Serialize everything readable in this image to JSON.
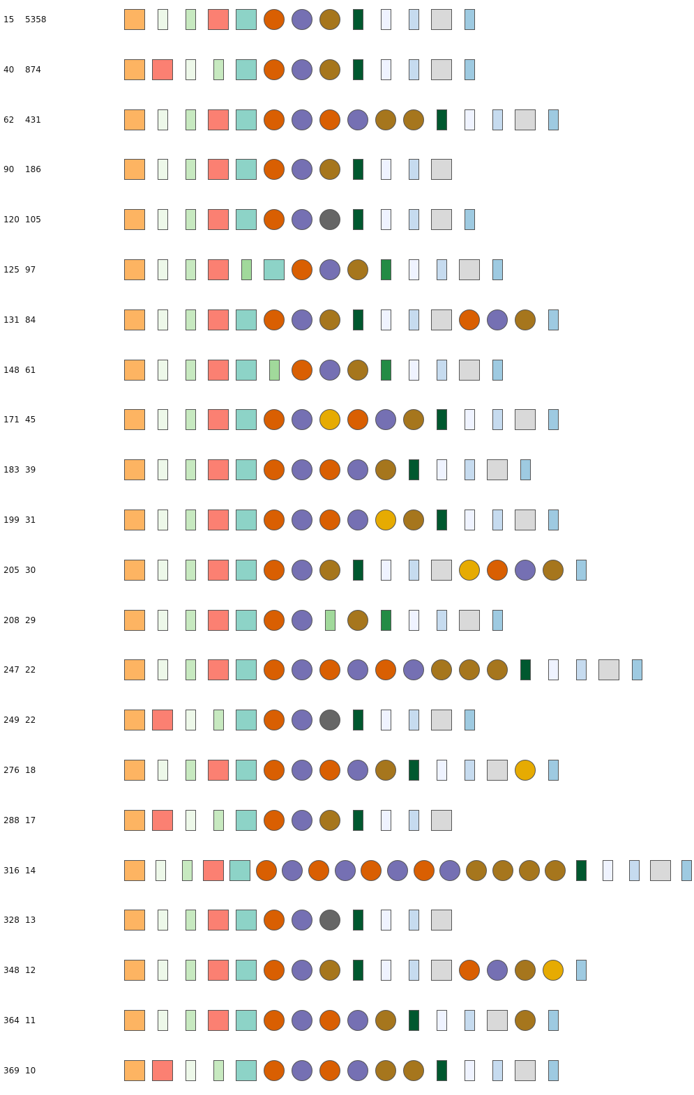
{
  "colors": {
    "A": "#fdb462",
    "B": "#fb8072",
    "C": "#edf8e9",
    "D": "#c7e9c0",
    "E": "#8dd3c7",
    "F": "#d95f02",
    "G": "#7570b3",
    "H": "#a6761d",
    "I": "#00582f",
    "J": "#eff3ff",
    "K": "#c6dbef",
    "L": "#d9d9d9",
    "M": "#9ecae1",
    "N": "#a1d99b",
    "O": "#238b45",
    "P": "#666666",
    "Q": "#e6ab02"
  },
  "shapes": {
    "A": "square",
    "B": "square",
    "C": "bar",
    "D": "bar",
    "E": "square",
    "F": "circle",
    "G": "circle",
    "H": "circle",
    "I": "bar",
    "J": "bar",
    "K": "bar",
    "L": "square",
    "M": "bar",
    "N": "bar",
    "O": "bar",
    "P": "circle",
    "Q": "circle"
  },
  "rows": [
    {
      "id": "15",
      "count": "5358",
      "glyphs": "ACDBEFGHIJKLM"
    },
    {
      "id": "40",
      "count": "874",
      "glyphs": "ABCDEFGHIJKLM"
    },
    {
      "id": "62",
      "count": "431",
      "glyphs": "ACDBEFGFGHHIJKLM"
    },
    {
      "id": "90",
      "count": "186",
      "glyphs": "ACDBEFGHIJKL"
    },
    {
      "id": "120",
      "count": "105",
      "glyphs": "ACDBEFGPIJKLM"
    },
    {
      "id": "125",
      "count": "97",
      "glyphs": "ACDBNEFGHOJKLM"
    },
    {
      "id": "131",
      "count": "84",
      "glyphs": "ACDBEFGHIJKLFGHM"
    },
    {
      "id": "148",
      "count": "61",
      "glyphs": "ACDBENFGHOJKLM"
    },
    {
      "id": "171",
      "count": "45",
      "glyphs": "ACDBEFGQFGHIJKLM"
    },
    {
      "id": "183",
      "count": "39",
      "glyphs": "ACDBEFGFGHIJKLM"
    },
    {
      "id": "199",
      "count": "31",
      "glyphs": "ACDBEFGFGQHIJKLM"
    },
    {
      "id": "205",
      "count": "30",
      "glyphs": "ACDBEFGHIJKLQFGHM"
    },
    {
      "id": "208",
      "count": "29",
      "glyphs": "ACDBEFGNHOJKLM"
    },
    {
      "id": "247",
      "count": "22",
      "glyphs": "ACDBEFGFGFGHHHIJKLM"
    },
    {
      "id": "249",
      "count": "22",
      "glyphs": "ABCDEFGPIJKLM"
    },
    {
      "id": "276",
      "count": "18",
      "glyphs": "ACDBEFGFGHIJKLQM"
    },
    {
      "id": "288",
      "count": "17",
      "glyphs": "ABCDEFGHIJKL"
    },
    {
      "id": "316",
      "count": "14",
      "glyphs": "ACDBEFGFGFGFGHHHHIJKLM"
    },
    {
      "id": "328",
      "count": "13",
      "glyphs": "ACDBEFGPIJKL"
    },
    {
      "id": "348",
      "count": "12",
      "glyphs": "ACDBEFGHIJKLFGHQM"
    },
    {
      "id": "364",
      "count": "11",
      "glyphs": "ACDBEFGFGHIJKLHM"
    },
    {
      "id": "369",
      "count": "10",
      "glyphs": "ABCDEFGFGHHIJKLM"
    }
  ]
}
